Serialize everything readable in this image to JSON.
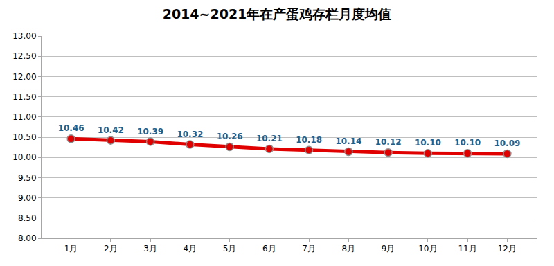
{
  "chart_data": {
    "type": "line",
    "title": "2014~2021年在产蛋鸡存栏月度均值",
    "categories": [
      "1月",
      "2月",
      "3月",
      "4月",
      "5月",
      "6月",
      "7月",
      "8月",
      "9月",
      "10月",
      "11月",
      "12月"
    ],
    "values": [
      10.46,
      10.42,
      10.39,
      10.32,
      10.26,
      10.21,
      10.18,
      10.14,
      10.12,
      10.1,
      10.1,
      10.09
    ],
    "value_labels": [
      "10.46",
      "10.42",
      "10.39",
      "10.32",
      "10.26",
      "10.21",
      "10.18",
      "10.14",
      "10.12",
      "10.10",
      "10.10",
      "10.09"
    ],
    "color": "#e00000",
    "marker": "circle",
    "data_labels": true,
    "grid": true,
    "ylim": [
      8,
      13
    ],
    "yticks": [
      {
        "value": 8,
        "label": "8.00"
      },
      {
        "value": 8.5,
        "label": "8.50"
      },
      {
        "value": 9,
        "label": "9.00"
      },
      {
        "value": 9.5,
        "label": "9.50"
      },
      {
        "value": 10,
        "label": "10.00"
      },
      {
        "value": 10.5,
        "label": "10.50"
      },
      {
        "value": 11,
        "label": "11.00"
      },
      {
        "value": 11.5,
        "label": "11.50"
      },
      {
        "value": 12,
        "label": "12.00"
      },
      {
        "value": 12.5,
        "label": "12.50"
      },
      {
        "value": 13,
        "label": "13.00"
      }
    ]
  }
}
